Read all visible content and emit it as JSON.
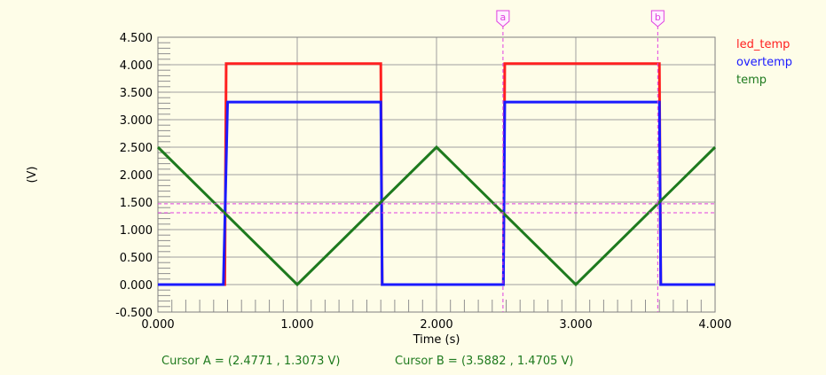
{
  "chart_data": {
    "type": "line",
    "xlabel": "Time (s)",
    "ylabel": "(V)",
    "xlim": [
      0,
      4
    ],
    "ylim": [
      -0.5,
      4.5
    ],
    "x_ticks": [
      "0.000",
      "1.000",
      "2.000",
      "3.000",
      "4.000"
    ],
    "y_ticks": [
      "4.500",
      "4.000",
      "3.500",
      "3.000",
      "2.500",
      "2.000",
      "1.500",
      "1.000",
      "0.500",
      "0.000",
      "-0.500"
    ],
    "grid": true,
    "legend_position": "top-right",
    "series": [
      {
        "name": "led_temp",
        "color": "#ff2020",
        "x": [
          0,
          0.48,
          0.49,
          1.6,
          1.61,
          2.48,
          2.49,
          3.6,
          3.61,
          4.0
        ],
        "y": [
          0,
          0,
          4.02,
          4.02,
          0,
          0,
          4.02,
          4.02,
          0,
          0
        ]
      },
      {
        "name": "overtemp",
        "color": "#1a1aff",
        "x": [
          0,
          0.47,
          0.5,
          1.6,
          1.61,
          2.48,
          2.49,
          3.6,
          3.61,
          4.0
        ],
        "y": [
          0,
          0,
          3.32,
          3.32,
          0,
          0,
          3.32,
          3.32,
          0,
          0
        ]
      },
      {
        "name": "temp",
        "color": "#1e7a1e",
        "x": [
          0,
          1,
          2,
          3,
          4
        ],
        "y": [
          2.5,
          0,
          2.5,
          0,
          2.5
        ]
      }
    ],
    "cursors": [
      {
        "tag": "a",
        "x": 2.4771,
        "y": 1.3073,
        "color": "#e040e0",
        "readout": "Cursor A = (2.4771 , 1.3073 V)"
      },
      {
        "tag": "b",
        "x": 3.5882,
        "y": 1.4705,
        "color": "#e040e0",
        "readout": "Cursor B = (3.5882 , 1.4705 V)"
      }
    ]
  }
}
